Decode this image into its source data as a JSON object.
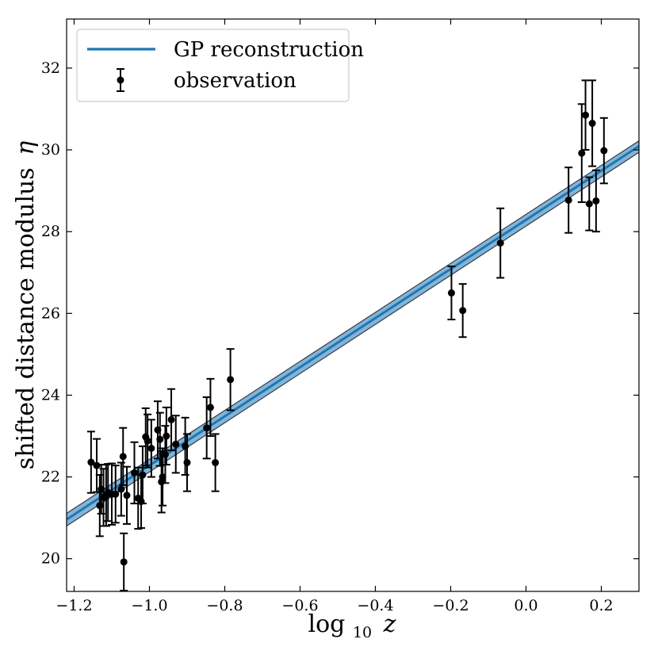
{
  "chart_data": {
    "type": "scatter",
    "xlabel_base": "log",
    "xlabel_sub": "10",
    "xlabel_var": "z",
    "ylabel_text": "shifted distance modulus",
    "ylabel_symbol": "η",
    "xlim": [
      -1.22,
      0.3
    ],
    "ylim": [
      19.2,
      33.2
    ],
    "xticks": [
      -1.2,
      -1.0,
      -0.8,
      -0.6,
      -0.4,
      -0.2,
      0.0,
      0.2
    ],
    "xtick_labels": [
      "−1.2",
      "−1.0",
      "−0.8",
      "−0.6",
      "−0.4",
      "−0.2",
      "0.0",
      "0.2"
    ],
    "yticks": [
      20,
      22,
      24,
      26,
      28,
      30,
      32
    ],
    "ytick_labels": [
      "20",
      "22",
      "24",
      "26",
      "28",
      "30",
      "32"
    ],
    "legend": {
      "position": "upper-left",
      "entries": [
        {
          "label": "GP reconstruction",
          "kind": "line"
        },
        {
          "label": "observation",
          "kind": "errorbar"
        }
      ]
    },
    "gp_series": {
      "name": "GP reconstruction",
      "x": [
        -1.22,
        0.3
      ],
      "mean": [
        20.96,
        30.09
      ],
      "upper": [
        21.11,
        30.22
      ],
      "lower": [
        20.8,
        29.94
      ],
      "color": "#1f77b4",
      "band_color": "#1f77b4"
    },
    "observations": {
      "name": "observation",
      "color": "#000000",
      "points": [
        {
          "x": -1.155,
          "y": 22.36,
          "err": 0.75
        },
        {
          "x": -1.14,
          "y": 22.28,
          "err": 0.65
        },
        {
          "x": -1.132,
          "y": 21.3,
          "err": 0.75
        },
        {
          "x": -1.128,
          "y": 21.7,
          "err": 0.6
        },
        {
          "x": -1.122,
          "y": 21.5,
          "err": 0.7
        },
        {
          "x": -1.115,
          "y": 21.55,
          "err": 0.75
        },
        {
          "x": -1.11,
          "y": 21.62,
          "err": 0.7
        },
        {
          "x": -1.1,
          "y": 21.58,
          "err": 0.75
        },
        {
          "x": -1.09,
          "y": 21.58,
          "err": 0.7
        },
        {
          "x": -1.07,
          "y": 22.5,
          "err": 0.7
        },
        {
          "x": -1.068,
          "y": 19.92,
          "err": 0.7
        },
        {
          "x": -1.075,
          "y": 21.7,
          "err": 0.65
        },
        {
          "x": -1.06,
          "y": 21.55,
          "err": 0.7
        },
        {
          "x": -1.04,
          "y": 22.1,
          "err": 0.75
        },
        {
          "x": -1.03,
          "y": 21.48,
          "err": 0.75
        },
        {
          "x": -1.022,
          "y": 21.4,
          "err": 0.65
        },
        {
          "x": -1.018,
          "y": 22.05,
          "err": 0.7
        },
        {
          "x": -1.01,
          "y": 22.98,
          "err": 0.7
        },
        {
          "x": -1.005,
          "y": 22.88,
          "err": 0.65
        },
        {
          "x": -0.995,
          "y": 22.7,
          "err": 0.7
        },
        {
          "x": -0.978,
          "y": 23.15,
          "err": 0.7
        },
        {
          "x": -0.972,
          "y": 22.92,
          "err": 0.65
        },
        {
          "x": -0.968,
          "y": 21.88,
          "err": 0.75
        },
        {
          "x": -0.965,
          "y": 22.0,
          "err": 0.7
        },
        {
          "x": -0.958,
          "y": 22.55,
          "err": 0.7
        },
        {
          "x": -0.955,
          "y": 23.0,
          "err": 0.7
        },
        {
          "x": -0.942,
          "y": 23.4,
          "err": 0.75
        },
        {
          "x": -0.93,
          "y": 22.8,
          "err": 0.7
        },
        {
          "x": -0.905,
          "y": 22.75,
          "err": 0.7
        },
        {
          "x": -0.9,
          "y": 22.35,
          "err": 0.7
        },
        {
          "x": -0.848,
          "y": 23.2,
          "err": 0.75
        },
        {
          "x": -0.838,
          "y": 23.7,
          "err": 0.7
        },
        {
          "x": -0.825,
          "y": 22.35,
          "err": 0.7
        },
        {
          "x": -0.785,
          "y": 24.38,
          "err": 0.75
        },
        {
          "x": -0.198,
          "y": 26.5,
          "err": 0.65
        },
        {
          "x": -0.168,
          "y": 26.07,
          "err": 0.65
        },
        {
          "x": -0.068,
          "y": 27.72,
          "err": 0.85
        },
        {
          "x": 0.113,
          "y": 28.77,
          "err": 0.8
        },
        {
          "x": 0.148,
          "y": 29.92,
          "err": 1.2
        },
        {
          "x": 0.158,
          "y": 30.85,
          "err": 0.85
        },
        {
          "x": 0.168,
          "y": 28.68,
          "err": 0.65
        },
        {
          "x": 0.176,
          "y": 30.65,
          "err": 1.05
        },
        {
          "x": 0.186,
          "y": 28.75,
          "err": 0.75
        },
        {
          "x": 0.207,
          "y": 29.98,
          "err": 0.8
        }
      ]
    }
  }
}
